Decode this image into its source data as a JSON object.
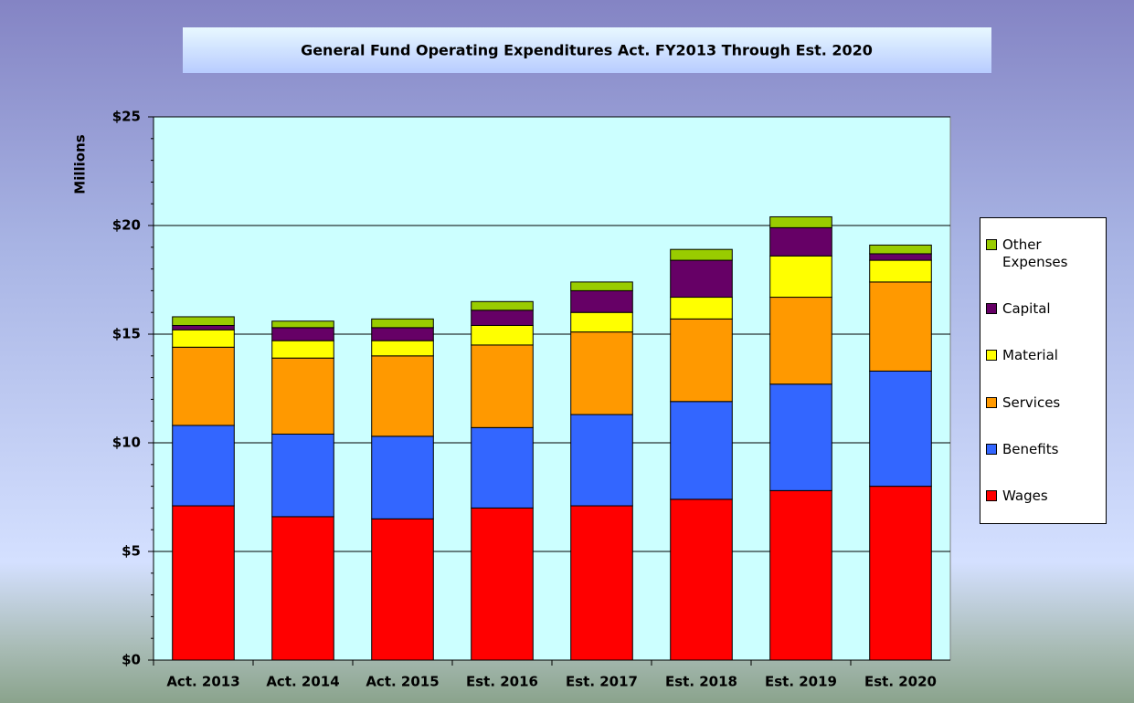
{
  "chart_data": {
    "type": "bar",
    "stacked": true,
    "title": "General Fund Operating Expenditures Act. FY2013 Through Est. 2020",
    "y_label": "Millions",
    "categories": [
      "Act. 2013",
      "Act. 2014",
      "Act. 2015",
      "Est. 2016",
      "Est. 2017",
      "Est. 2018",
      "Est. 2019",
      "Est. 2020"
    ],
    "series": [
      {
        "name": "Wages",
        "color": "#ff0000",
        "values": [
          7.1,
          6.6,
          6.5,
          7.0,
          7.1,
          7.4,
          7.8,
          8.0
        ]
      },
      {
        "name": "Benefits",
        "color": "#3366ff",
        "values": [
          3.7,
          3.8,
          3.8,
          3.7,
          4.2,
          4.5,
          4.9,
          5.3
        ]
      },
      {
        "name": "Services",
        "color": "#ff9900",
        "values": [
          3.6,
          3.5,
          3.7,
          3.8,
          3.8,
          3.8,
          4.0,
          4.1
        ]
      },
      {
        "name": "Material",
        "color": "#ffff00",
        "values": [
          0.8,
          0.8,
          0.7,
          0.9,
          0.9,
          1.0,
          1.9,
          1.0
        ]
      },
      {
        "name": "Capital",
        "color": "#660066",
        "values": [
          0.2,
          0.6,
          0.6,
          0.7,
          1.0,
          1.7,
          1.3,
          0.3
        ]
      },
      {
        "name": "Other Expenses",
        "color": "#99cc00",
        "values": [
          0.4,
          0.3,
          0.4,
          0.4,
          0.4,
          0.5,
          0.5,
          0.4
        ]
      }
    ],
    "ylim": [
      0,
      25
    ],
    "yticks": [
      {
        "value": 0,
        "label": "$0"
      },
      {
        "value": 5,
        "label": "$5"
      },
      {
        "value": 10,
        "label": "$10"
      },
      {
        "value": 15,
        "label": "$15"
      },
      {
        "value": 20,
        "label": "$20"
      },
      {
        "value": 25,
        "label": "$25"
      }
    ],
    "grid": true,
    "legend": "right"
  }
}
